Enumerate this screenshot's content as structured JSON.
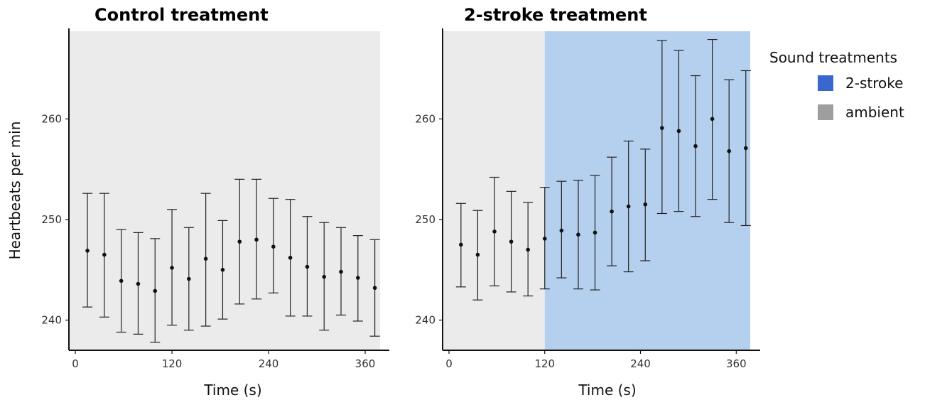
{
  "chart_data": [
    {
      "type": "scatter",
      "title": "Control treatment",
      "xlabel": "Time (s)",
      "ylabel": "Heartbeats per min",
      "xlim": [
        -8,
        390
      ],
      "ylim": [
        237,
        269
      ],
      "xticks": [
        0,
        120,
        240,
        360
      ],
      "yticks": [
        240,
        250,
        260
      ],
      "grid": false,
      "background_regions": [
        {
          "treatment": "ambient",
          "x_start": -8,
          "x_end": 390
        }
      ],
      "points": [
        {
          "x": 15,
          "y": 246.9,
          "lo": 241.3,
          "hi": 252.6
        },
        {
          "x": 36,
          "y": 246.5,
          "lo": 240.3,
          "hi": 252.6
        },
        {
          "x": 57,
          "y": 243.9,
          "lo": 238.8,
          "hi": 249.0
        },
        {
          "x": 78,
          "y": 243.6,
          "lo": 238.6,
          "hi": 248.7
        },
        {
          "x": 99,
          "y": 242.9,
          "lo": 237.8,
          "hi": 248.1
        },
        {
          "x": 120,
          "y": 245.2,
          "lo": 239.5,
          "hi": 251.0
        },
        {
          "x": 141,
          "y": 244.1,
          "lo": 239.0,
          "hi": 249.2
        },
        {
          "x": 162,
          "y": 246.1,
          "lo": 239.4,
          "hi": 252.6
        },
        {
          "x": 183,
          "y": 245.0,
          "lo": 240.1,
          "hi": 249.9
        },
        {
          "x": 204,
          "y": 247.8,
          "lo": 241.6,
          "hi": 254.0
        },
        {
          "x": 225,
          "y": 248.0,
          "lo": 242.1,
          "hi": 254.0
        },
        {
          "x": 246,
          "y": 247.3,
          "lo": 242.7,
          "hi": 252.1
        },
        {
          "x": 267,
          "y": 246.2,
          "lo": 240.4,
          "hi": 252.0
        },
        {
          "x": 288,
          "y": 245.3,
          "lo": 240.4,
          "hi": 250.3
        },
        {
          "x": 309,
          "y": 244.3,
          "lo": 239.0,
          "hi": 249.7
        },
        {
          "x": 330,
          "y": 244.8,
          "lo": 240.5,
          "hi": 249.2
        },
        {
          "x": 351,
          "y": 244.2,
          "lo": 239.9,
          "hi": 248.4
        },
        {
          "x": 372,
          "y": 243.2,
          "lo": 238.4,
          "hi": 248.0
        }
      ]
    },
    {
      "type": "scatter",
      "title": "2-stroke treatment",
      "xlabel": "Time (s)",
      "ylabel": "",
      "xlim": [
        -8,
        390
      ],
      "ylim": [
        237,
        269
      ],
      "xticks": [
        0,
        120,
        240,
        360
      ],
      "yticks": [
        240,
        250,
        260
      ],
      "grid": false,
      "background_regions": [
        {
          "treatment": "ambient",
          "x_start": -8,
          "x_end": 120
        },
        {
          "treatment": "2-stroke",
          "x_start": 120,
          "x_end": 390
        }
      ],
      "points": [
        {
          "x": 15,
          "y": 247.5,
          "lo": 243.3,
          "hi": 251.6
        },
        {
          "x": 36,
          "y": 246.5,
          "lo": 242.0,
          "hi": 250.9
        },
        {
          "x": 57,
          "y": 248.8,
          "lo": 243.4,
          "hi": 254.2
        },
        {
          "x": 78,
          "y": 247.8,
          "lo": 242.8,
          "hi": 252.8
        },
        {
          "x": 99,
          "y": 247.0,
          "lo": 242.4,
          "hi": 251.7
        },
        {
          "x": 120,
          "y": 248.1,
          "lo": 243.1,
          "hi": 253.2
        },
        {
          "x": 141,
          "y": 248.9,
          "lo": 244.2,
          "hi": 253.8
        },
        {
          "x": 162,
          "y": 248.5,
          "lo": 243.1,
          "hi": 253.9
        },
        {
          "x": 183,
          "y": 248.7,
          "lo": 243.0,
          "hi": 254.4
        },
        {
          "x": 204,
          "y": 250.8,
          "lo": 245.4,
          "hi": 256.2
        },
        {
          "x": 225,
          "y": 251.3,
          "lo": 244.8,
          "hi": 257.8
        },
        {
          "x": 246,
          "y": 251.5,
          "lo": 245.9,
          "hi": 257.0
        },
        {
          "x": 267,
          "y": 259.1,
          "lo": 250.6,
          "hi": 267.8
        },
        {
          "x": 288,
          "y": 258.8,
          "lo": 250.8,
          "hi": 266.8
        },
        {
          "x": 309,
          "y": 257.3,
          "lo": 250.3,
          "hi": 264.3
        },
        {
          "x": 330,
          "y": 260.0,
          "lo": 252.0,
          "hi": 267.9
        },
        {
          "x": 351,
          "y": 256.8,
          "lo": 249.7,
          "hi": 263.9
        },
        {
          "x": 372,
          "y": 257.1,
          "lo": 249.4,
          "hi": 264.8
        }
      ]
    }
  ],
  "legend": {
    "title": "Sound treatments",
    "placement": "right",
    "items": [
      {
        "label": "2-stroke",
        "color": "#3a66cf"
      },
      {
        "label": "ambient",
        "color": "#9e9e9e"
      }
    ]
  },
  "colors": {
    "ambient_bg": "#ebebeb",
    "stroke_bg": "#b5cfee",
    "point": "#111111",
    "errorbar": "#222222",
    "axis": "#111111"
  }
}
